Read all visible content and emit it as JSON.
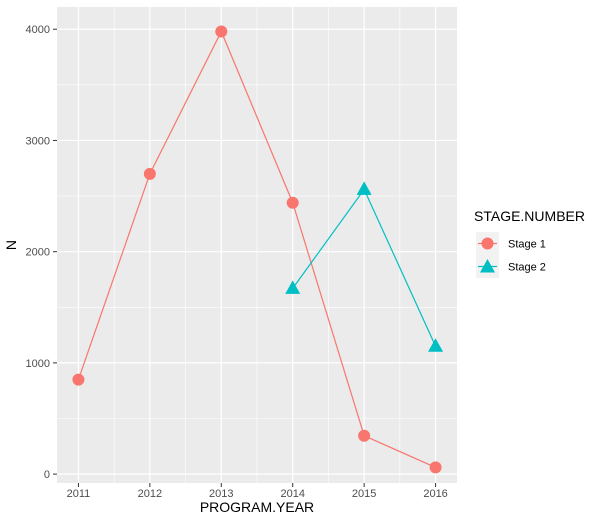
{
  "chart_data": {
    "type": "line",
    "xlabel": "PROGRAM.YEAR",
    "ylabel": "N",
    "x_ticks": [
      "2011",
      "2012",
      "2013",
      "2014",
      "2015",
      "2016"
    ],
    "y_ticks": [
      "0",
      "1000",
      "2000",
      "3000",
      "4000"
    ],
    "xlim": [
      2010.7,
      2016.3
    ],
    "ylim": [
      -80,
      4200
    ],
    "grid": true,
    "legend": {
      "title": "STAGE.NUMBER",
      "position": "right"
    },
    "series": [
      {
        "name": "Stage 1",
        "color": "#F8766D",
        "marker": "circle",
        "x": [
          2011,
          2012,
          2013,
          2014,
          2015,
          2016
        ],
        "y": [
          850,
          2700,
          3980,
          2440,
          345,
          60
        ]
      },
      {
        "name": "Stage 2",
        "color": "#00BFC4",
        "marker": "triangle",
        "x": [
          2014,
          2015,
          2016
        ],
        "y": [
          1670,
          2560,
          1150
        ]
      }
    ]
  }
}
